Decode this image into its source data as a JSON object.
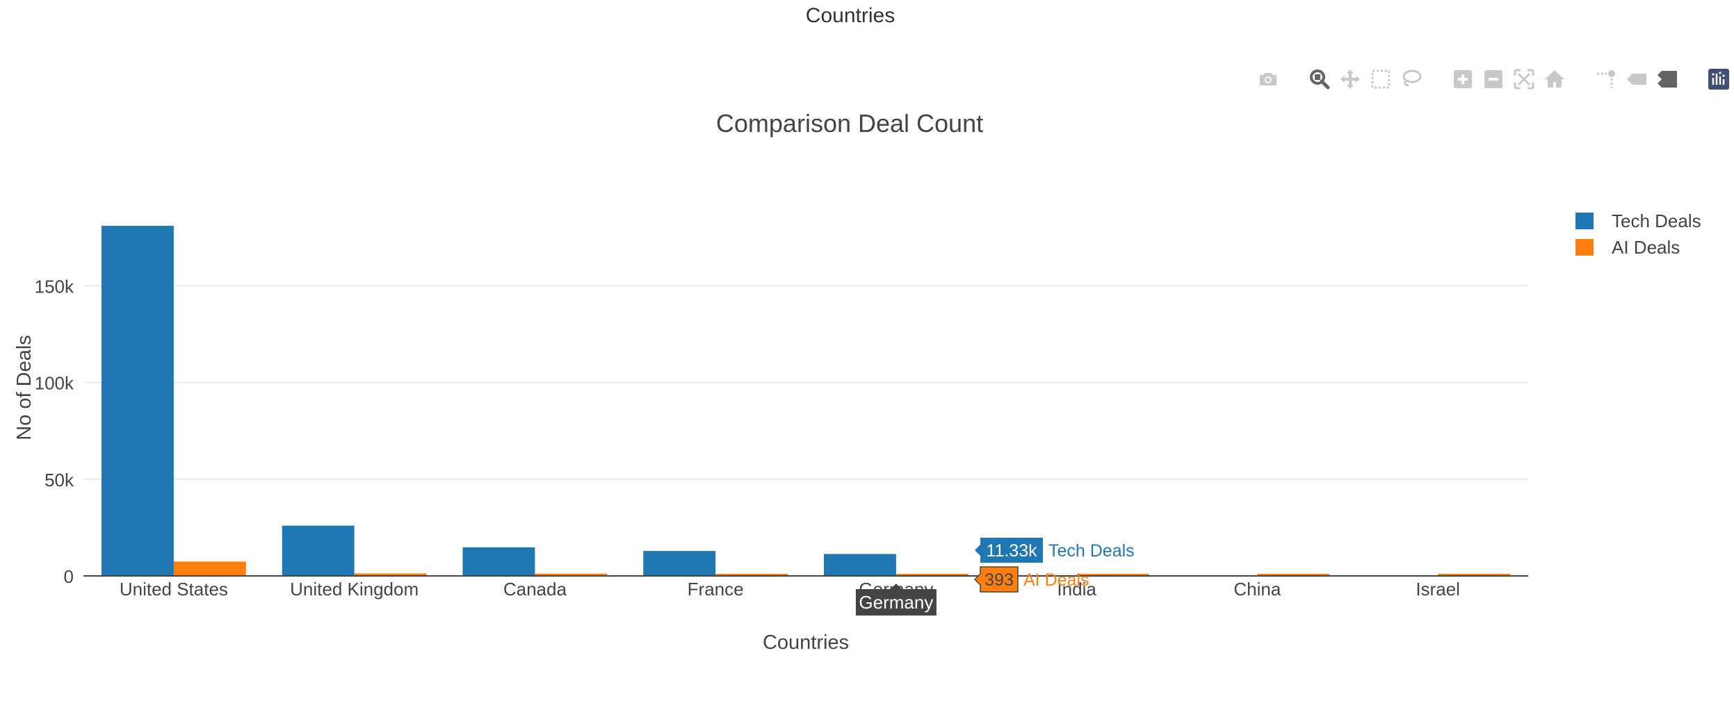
{
  "page": {
    "heading": "Countries"
  },
  "modebar": {
    "groups": [
      [
        "camera-icon"
      ],
      [
        "zoom-icon",
        "pan-icon",
        "box-select-icon",
        "lasso-select-icon"
      ],
      [
        "zoom-in-icon",
        "zoom-out-icon",
        "autoscale-icon",
        "reset-axes-icon"
      ],
      [
        "spike-lines-icon",
        "hover-closest-icon",
        "hover-compare-icon"
      ],
      [
        "plotly-logo-icon"
      ]
    ],
    "active": "zoom-icon",
    "colors": {
      "inactive": "#c8c8c8",
      "active": "#646464",
      "logo": "#3f4f75"
    }
  },
  "chart_data": {
    "type": "bar",
    "title": "Comparison Deal Count",
    "xlabel": "Countries",
    "ylabel": "No of Deals",
    "categories": [
      "United States",
      "United Kingdom",
      "Canada",
      "France",
      "Germany",
      "India",
      "China",
      "Israel"
    ],
    "series": [
      {
        "name": "Tech Deals",
        "color": "#1f77b4",
        "values": [
          181000,
          26000,
          14800,
          12900,
          11330,
          0,
          0,
          0
        ]
      },
      {
        "name": "AI Deals",
        "color": "#ff7f0e",
        "values": [
          7400,
          1300,
          1200,
          700,
          393,
          300,
          250,
          250
        ]
      }
    ],
    "ylim": [
      0,
      190000
    ],
    "yticks": [
      0,
      50000,
      100000,
      150000
    ],
    "ytick_labels": [
      "0",
      "50k",
      "100k",
      "150k"
    ],
    "grid": true,
    "legend_position": "top-right",
    "hover": {
      "category": "Germany",
      "labels": [
        {
          "series": "Tech Deals",
          "value_text": "11.33k",
          "name": "Tech Deals"
        },
        {
          "series": "AI Deals",
          "value_text": "393",
          "name": "AI Deals"
        }
      ]
    }
  }
}
